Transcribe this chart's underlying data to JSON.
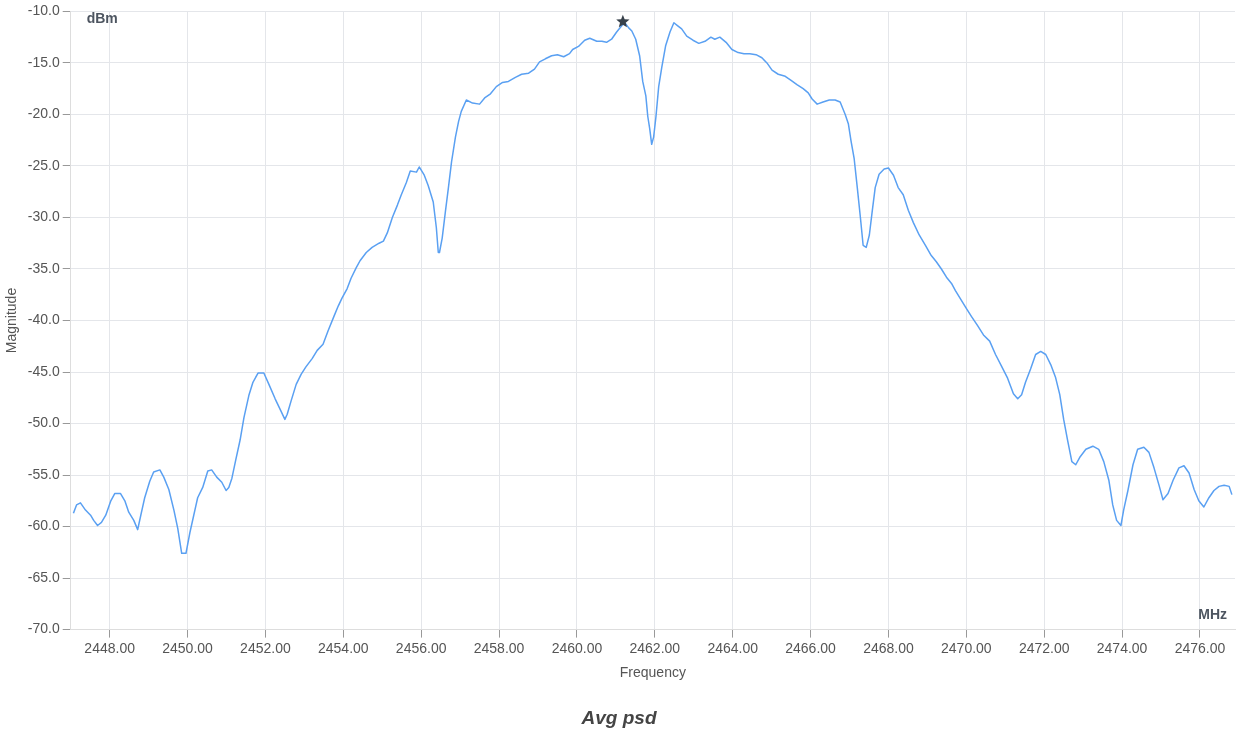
{
  "chart_data": {
    "type": "line",
    "title": "Avg psd",
    "xlabel": "Frequency",
    "ylabel": "Magnitude",
    "annotations": [
      "dBm",
      "MHz"
    ],
    "xlim": [
      2447,
      2476.9
    ],
    "xticks": [
      {
        "value": 2448,
        "label": "2448.00"
      },
      {
        "value": 2450,
        "label": "2450.00"
      },
      {
        "value": 2452,
        "label": "2452.00"
      },
      {
        "value": 2454,
        "label": "2454.00"
      },
      {
        "value": 2456,
        "label": "2456.00"
      },
      {
        "value": 2458,
        "label": "2458.00"
      },
      {
        "value": 2460,
        "label": "2460.00"
      },
      {
        "value": 2462,
        "label": "2462.00"
      },
      {
        "value": 2464,
        "label": "2464.00"
      },
      {
        "value": 2466,
        "label": "2466.00"
      },
      {
        "value": 2468,
        "label": "2468.00"
      },
      {
        "value": 2470,
        "label": "2470.00"
      },
      {
        "value": 2472,
        "label": "2472.00"
      },
      {
        "value": 2474,
        "label": "2474.00"
      },
      {
        "value": 2476,
        "label": "2476.00"
      }
    ],
    "ylim": [
      -70,
      -10
    ],
    "yticks": [
      {
        "value": -10,
        "label": "-10.0"
      },
      {
        "value": -15,
        "label": "-15.0"
      },
      {
        "value": -20,
        "label": "-20.0"
      },
      {
        "value": -25,
        "label": "-25.0"
      },
      {
        "value": -30,
        "label": "-30.0"
      },
      {
        "value": -35,
        "label": "-35.0"
      },
      {
        "value": -40,
        "label": "-40.0"
      },
      {
        "value": -45,
        "label": "-45.0"
      },
      {
        "value": -50,
        "label": "-50.0"
      },
      {
        "value": -55,
        "label": "-55.0"
      },
      {
        "value": -60,
        "label": "-60.0"
      },
      {
        "value": -65,
        "label": "-65.0"
      },
      {
        "value": -70,
        "label": "-70.0"
      }
    ],
    "grid": true,
    "legend": false,
    "marker": "none",
    "line_style": "solid",
    "series": [
      {
        "color": "#5aa0f2",
        "x": [
          2447.07,
          2447.15,
          2447.25,
          2447.38,
          2447.51,
          2447.59,
          2447.69,
          2447.79,
          2447.9,
          2448.03,
          2448.13,
          2448.28,
          2448.39,
          2448.49,
          2448.62,
          2448.72,
          2448.8,
          2448.9,
          2449.03,
          2449.13,
          2449.29,
          2449.39,
          2449.52,
          2449.65,
          2449.75,
          2449.85,
          2449.96,
          2450.06,
          2450.16,
          2450.26,
          2450.39,
          2450.52,
          2450.62,
          2450.75,
          2450.88,
          2450.99,
          2451.06,
          2451.14,
          2451.24,
          2451.35,
          2451.45,
          2451.58,
          2451.68,
          2451.81,
          2451.96,
          2452.09,
          2452.25,
          2452.4,
          2452.5,
          2452.56,
          2452.66,
          2452.79,
          2452.92,
          2453.04,
          2453.2,
          2453.33,
          2453.48,
          2453.61,
          2453.76,
          2453.87,
          2453.97,
          2454.1,
          2454.2,
          2454.33,
          2454.43,
          2454.59,
          2454.74,
          2454.92,
          2455.03,
          2455.13,
          2455.26,
          2455.39,
          2455.49,
          2455.62,
          2455.72,
          2455.88,
          2455.95,
          2456.08,
          2456.18,
          2456.31,
          2456.39,
          2456.44,
          2456.47,
          2456.54,
          2456.62,
          2456.7,
          2456.78,
          2456.88,
          2456.96,
          2457.03,
          2457.16,
          2457.32,
          2457.5,
          2457.63,
          2457.78,
          2457.93,
          2458.09,
          2458.24,
          2458.42,
          2458.58,
          2458.76,
          2458.91,
          2459.04,
          2459.19,
          2459.35,
          2459.5,
          2459.66,
          2459.81,
          2459.89,
          2460.04,
          2460.2,
          2460.33,
          2460.51,
          2460.64,
          2460.76,
          2460.89,
          2461.02,
          2461.15,
          2461.23,
          2461.33,
          2461.41,
          2461.51,
          2461.61,
          2461.69,
          2461.77,
          2461.82,
          2461.87,
          2461.92,
          2461.97,
          2462.03,
          2462.1,
          2462.18,
          2462.28,
          2462.39,
          2462.49,
          2462.59,
          2462.69,
          2462.82,
          2462.98,
          2463.13,
          2463.29,
          2463.44,
          2463.54,
          2463.67,
          2463.83,
          2463.98,
          2464.14,
          2464.29,
          2464.44,
          2464.6,
          2464.75,
          2464.88,
          2465.01,
          2465.17,
          2465.35,
          2465.5,
          2465.65,
          2465.81,
          2465.94,
          2466.04,
          2466.17,
          2466.32,
          2466.48,
          2466.63,
          2466.76,
          2466.89,
          2466.97,
          2467.04,
          2467.12,
          2467.2,
          2467.28,
          2467.35,
          2467.43,
          2467.51,
          2467.58,
          2467.66,
          2467.76,
          2467.89,
          2468.0,
          2468.13,
          2468.25,
          2468.38,
          2468.51,
          2468.64,
          2468.79,
          2468.95,
          2469.1,
          2469.23,
          2469.36,
          2469.49,
          2469.62,
          2469.72,
          2469.85,
          2469.98,
          2470.13,
          2470.29,
          2470.44,
          2470.6,
          2470.75,
          2470.9,
          2471.06,
          2471.21,
          2471.32,
          2471.42,
          2471.52,
          2471.65,
          2471.78,
          2471.91,
          2472.04,
          2472.17,
          2472.29,
          2472.4,
          2472.5,
          2472.6,
          2472.71,
          2472.81,
          2472.91,
          2473.07,
          2473.25,
          2473.4,
          2473.53,
          2473.66,
          2473.76,
          2473.86,
          2473.97,
          2474.04,
          2474.15,
          2474.28,
          2474.4,
          2474.56,
          2474.69,
          2474.82,
          2474.95,
          2475.05,
          2475.18,
          2475.31,
          2475.46,
          2475.59,
          2475.72,
          2475.85,
          2475.97,
          2476.1,
          2476.23,
          2476.36,
          2476.49,
          2476.62,
          2476.75,
          2476.82
        ],
        "values": [
          -58.7,
          -57.9,
          -57.7,
          -58.4,
          -58.9,
          -59.4,
          -59.9,
          -59.6,
          -58.9,
          -57.5,
          -56.8,
          -56.8,
          -57.5,
          -58.6,
          -59.4,
          -60.3,
          -58.9,
          -57.2,
          -55.6,
          -54.7,
          -54.5,
          -55.2,
          -56.4,
          -58.4,
          -60.2,
          -62.6,
          -62.6,
          -60.6,
          -58.9,
          -57.2,
          -56.2,
          -54.6,
          -54.5,
          -55.2,
          -55.7,
          -56.5,
          -56.2,
          -55.3,
          -53.5,
          -51.6,
          -49.4,
          -47.2,
          -46.0,
          -45.1,
          -45.1,
          -46.2,
          -47.6,
          -48.8,
          -49.6,
          -49.1,
          -47.8,
          -46.2,
          -45.2,
          -44.5,
          -43.7,
          -42.9,
          -42.3,
          -41.0,
          -39.6,
          -38.6,
          -37.8,
          -36.9,
          -35.9,
          -34.9,
          -34.2,
          -33.4,
          -32.9,
          -32.5,
          -32.3,
          -31.5,
          -30.0,
          -28.8,
          -27.8,
          -26.6,
          -25.5,
          -25.6,
          -25.1,
          -25.9,
          -26.9,
          -28.5,
          -31.0,
          -33.4,
          -33.4,
          -32.0,
          -29.5,
          -27.1,
          -24.6,
          -22.2,
          -20.7,
          -19.7,
          -18.6,
          -18.9,
          -19.0,
          -18.4,
          -18.0,
          -17.3,
          -16.9,
          -16.8,
          -16.4,
          -16.1,
          -16.0,
          -15.6,
          -14.9,
          -14.6,
          -14.3,
          -14.2,
          -14.4,
          -14.1,
          -13.7,
          -13.4,
          -12.8,
          -12.6,
          -12.9,
          -12.9,
          -13.0,
          -12.7,
          -12.0,
          -11.4,
          -11.1,
          -11.6,
          -11.9,
          -12.7,
          -14.3,
          -16.8,
          -18.2,
          -20.2,
          -21.4,
          -22.9,
          -22.2,
          -20.2,
          -17.3,
          -15.4,
          -13.3,
          -12.0,
          -11.1,
          -11.4,
          -11.7,
          -12.4,
          -12.8,
          -13.1,
          -12.9,
          -12.5,
          -12.7,
          -12.5,
          -13.0,
          -13.7,
          -14.0,
          -14.1,
          -14.1,
          -14.2,
          -14.5,
          -15.0,
          -15.7,
          -16.1,
          -16.3,
          -16.7,
          -17.1,
          -17.5,
          -17.9,
          -18.5,
          -19.0,
          -18.8,
          -18.6,
          -18.6,
          -18.8,
          -20.0,
          -20.9,
          -22.6,
          -24.3,
          -27.1,
          -30.0,
          -32.7,
          -32.9,
          -31.7,
          -29.5,
          -27.1,
          -25.8,
          -25.3,
          -25.2,
          -25.9,
          -27.1,
          -27.8,
          -29.3,
          -30.5,
          -31.7,
          -32.7,
          -33.7,
          -34.3,
          -35.0,
          -35.8,
          -36.4,
          -37.1,
          -37.9,
          -38.7,
          -39.6,
          -40.5,
          -41.4,
          -42.0,
          -43.3,
          -44.4,
          -45.6,
          -47.1,
          -47.6,
          -47.2,
          -46.0,
          -44.7,
          -43.3,
          -43.0,
          -43.3,
          -44.3,
          -45.5,
          -47.2,
          -49.6,
          -51.6,
          -53.7,
          -54.0,
          -53.3,
          -52.5,
          -52.2,
          -52.5,
          -53.7,
          -55.5,
          -57.9,
          -59.4,
          -59.9,
          -58.4,
          -56.5,
          -54.0,
          -52.5,
          -52.3,
          -52.8,
          -54.3,
          -56.0,
          -57.4,
          -56.8,
          -55.5,
          -54.3,
          -54.1,
          -54.8,
          -56.4,
          -57.5,
          -58.1,
          -57.2,
          -56.5,
          -56.1,
          -56.0,
          -56.1,
          -56.9
        ]
      },
      {
        "type": "scatter",
        "marker": "star",
        "color": "#37414b",
        "x": [
          2461.18
        ],
        "values": [
          -11.0
        ]
      }
    ]
  }
}
